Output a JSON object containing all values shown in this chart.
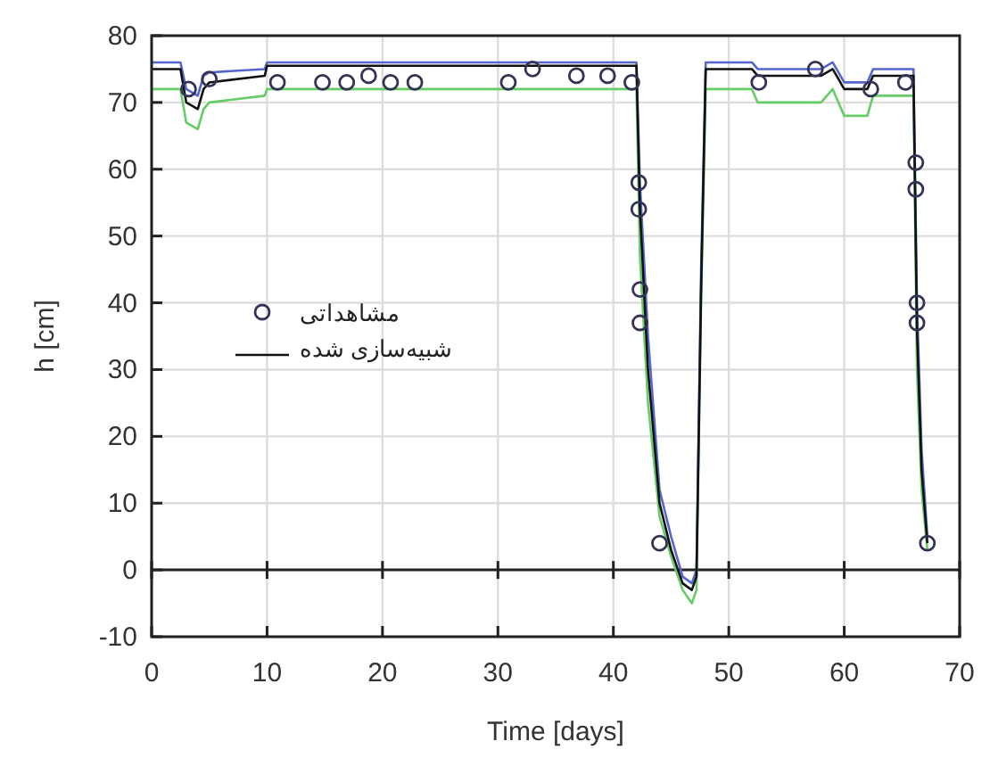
{
  "chart_data": {
    "type": "line",
    "xlabel": "Time [days]",
    "ylabel": "h [cm]",
    "xlim": [
      0,
      70
    ],
    "xticks": [
      0,
      10,
      20,
      30,
      40,
      50,
      60,
      70
    ],
    "ylim": [
      -10,
      80
    ],
    "yticks": [
      -10,
      0,
      10,
      20,
      30,
      40,
      50,
      60,
      70,
      80
    ],
    "grid": true,
    "legend": "left",
    "ref_lines": [
      {
        "axis": "y",
        "value": 0,
        "color": "#222222"
      }
    ],
    "series": [
      {
        "name": null,
        "color": "#66cc66",
        "x": [
          0,
          2.5,
          3,
          4,
          4.5,
          5,
          9.8,
          10,
          42,
          42.3,
          43,
          44,
          45,
          46,
          46.8,
          47.2,
          47.6,
          48,
          52,
          52.5,
          58,
          59,
          60,
          62,
          62.5,
          66,
          66.3,
          66.7,
          67.2
        ],
        "values": [
          72,
          72,
          67,
          66,
          69,
          70,
          71,
          72,
          72,
          47,
          25,
          8,
          2,
          -3,
          -5,
          -3,
          40,
          72,
          72,
          70,
          70,
          72,
          68,
          68,
          71,
          71,
          30,
          12,
          3
        ]
      },
      {
        "name": null,
        "color": "#5566cc",
        "x": [
          0,
          2.5,
          3,
          4,
          4.5,
          5,
          9.8,
          10,
          42,
          42.3,
          43,
          44,
          45,
          46,
          46.8,
          47.2,
          47.6,
          48,
          52,
          52.5,
          58,
          59,
          60,
          62,
          62.5,
          66,
          66.3,
          66.7,
          67.2
        ],
        "values": [
          76,
          76,
          72,
          71,
          74,
          74.5,
          75,
          76,
          76,
          58,
          35,
          12,
          5,
          -1,
          -2,
          0,
          45,
          76,
          76,
          75,
          75,
          76,
          73,
          73,
          75,
          75,
          40,
          18,
          5
        ]
      },
      {
        "name": "شبیه‌سازی شده",
        "color": "#111111",
        "x": [
          0,
          2.5,
          3,
          4,
          4.5,
          5,
          9.8,
          10,
          42,
          42.3,
          43,
          44,
          45,
          46,
          46.8,
          47.2,
          47.6,
          48,
          52,
          52.5,
          58,
          59,
          60,
          62,
          62.5,
          66,
          66.3,
          66.7,
          67.2
        ],
        "values": [
          75,
          75,
          70,
          69,
          72,
          73,
          74,
          75.5,
          75.5,
          54,
          30,
          10,
          3,
          -2,
          -3,
          -1,
          42,
          75,
          75,
          74,
          74,
          75,
          72,
          72,
          74,
          74,
          36,
          15,
          4
        ]
      },
      {
        "name": "مشاهداتی",
        "type": "scatter",
        "marker": "circle",
        "color": "#333355",
        "x": [
          3.2,
          5,
          10.9,
          14.8,
          16.9,
          18.8,
          20.7,
          22.8,
          30.9,
          33,
          36.8,
          39.5,
          41.6,
          42.2,
          42.2,
          42.3,
          42.3,
          44,
          52.6,
          57.5,
          62.3,
          65.3,
          66.2,
          66.2,
          66.3,
          66.3,
          67.2
        ],
        "values": [
          72,
          73.5,
          73,
          73,
          73,
          74,
          73,
          73,
          73,
          75,
          74,
          74,
          73,
          58,
          54,
          42,
          37,
          4,
          73,
          75,
          72,
          73,
          61,
          57,
          40,
          37,
          4
        ]
      }
    ]
  }
}
